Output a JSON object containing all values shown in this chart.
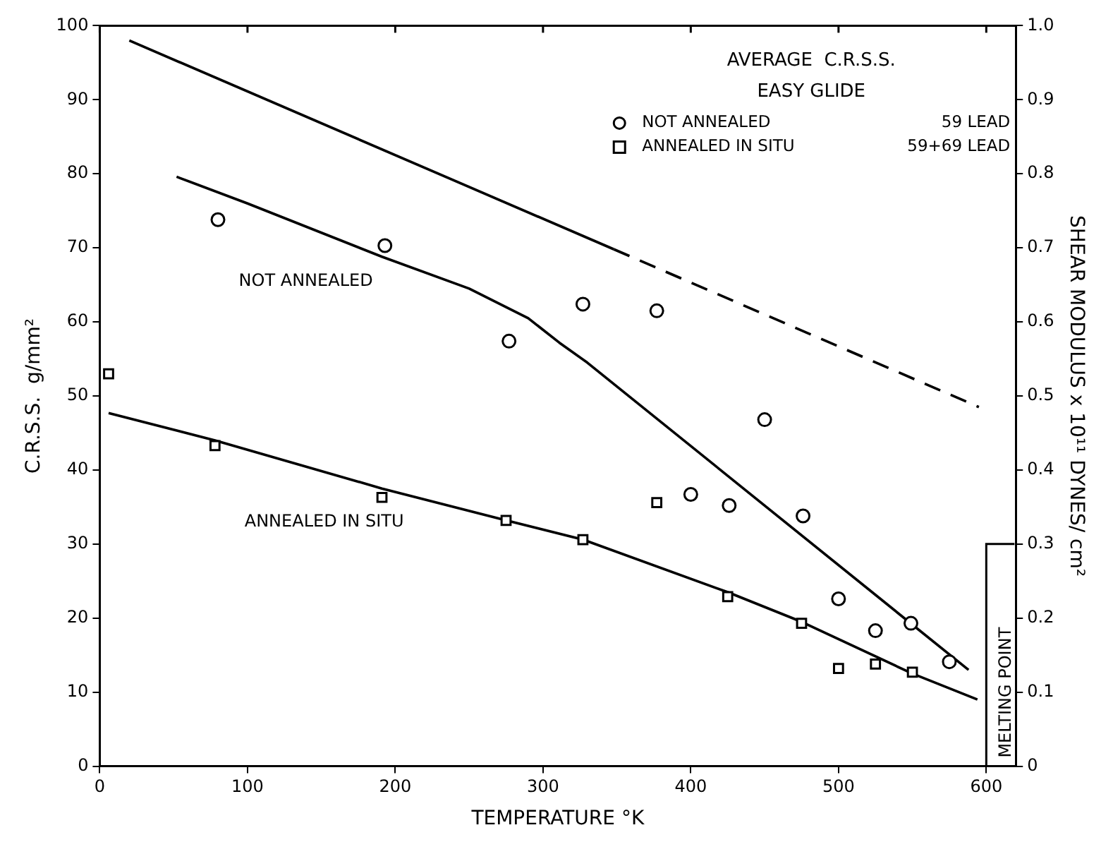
{
  "chart_data": {
    "type": "scatter",
    "xlabel": "TEMPERATURE °K",
    "ylabel": "C.R.S.S.  g/mm²",
    "y2label": "SHEAR MODULUS x 10¹¹ DYNES/ cm²",
    "legend_title": [
      "AVERAGE  C.R.S.S.",
      "EASY GLIDE"
    ],
    "xlim": [
      0,
      620
    ],
    "xticks": [
      0,
      100,
      200,
      300,
      400,
      500,
      600
    ],
    "ylim": [
      0,
      100
    ],
    "yticks": [
      0,
      10,
      20,
      30,
      40,
      50,
      60,
      70,
      80,
      90,
      100
    ],
    "y2lim": [
      0,
      1
    ],
    "y2ticks": [
      0,
      0.1,
      0.2,
      0.3,
      0.4,
      0.5,
      0.6,
      0.7,
      0.8,
      0.9,
      {
        "value": 1,
        "label": "1.0"
      }
    ],
    "grid": false,
    "legend": "top right",
    "series": [
      {
        "name": "NOT ANNEALED",
        "marker": "circle",
        "color": "#000000",
        "x": [
          80,
          193,
          277,
          327,
          377,
          400,
          426,
          450,
          476,
          500,
          525,
          549,
          575
        ],
        "values": [
          73.8,
          70.3,
          57.4,
          62.4,
          61.5,
          36.7,
          35.2,
          46.8,
          33.8,
          22.6,
          18.3,
          19.3,
          14.1
        ]
      },
      {
        "name": "ANNEALED IN SITU",
        "marker": "square",
        "color": "#000000",
        "x": [
          6,
          78,
          191,
          275,
          327,
          377,
          425,
          475,
          500,
          525,
          550
        ],
        "values": [
          53,
          43.3,
          36.3,
          33.2,
          30.6,
          35.6,
          22.9,
          19.3,
          13.2,
          13.8,
          12.7
        ]
      },
      {
        "type": "line",
        "marker": "none",
        "line_style": "solid",
        "color": "#000000",
        "x": [
          52,
          100,
          191,
          250,
          290,
          311,
          330,
          588
        ],
        "values": [
          79.6,
          76,
          68.8,
          64.5,
          60.5,
          57.2,
          54.5,
          13
        ]
      },
      {
        "type": "line",
        "marker": "none",
        "line_style": "solid",
        "color": "#000000",
        "x": [
          6,
          78,
          191,
          275,
          327,
          425,
          475,
          550,
          594
        ],
        "values": [
          47.7,
          44,
          37.5,
          33.2,
          30.6,
          23.5,
          19.5,
          12.5,
          9
        ]
      },
      {
        "type": "line",
        "axis": "y2",
        "marker": "none",
        "line_style": "solid",
        "color": "#000000",
        "x": [
          20,
          348
        ],
        "values": [
          0.98,
          0.698
        ]
      },
      {
        "type": "line",
        "axis": "y2",
        "marker": "none",
        "line_style": "dashed",
        "color": "#000000",
        "x": [
          348,
          595
        ],
        "values": [
          0.698,
          0.485
        ]
      }
    ],
    "ref_lines": [
      {
        "axis": "x",
        "value": 600,
        "label": "MELTING POINT"
      }
    ],
    "annotations": [
      "NOT ANNEALED",
      "ANNEALED IN SITU",
      "59 LEAD",
      "59+69 LEAD"
    ]
  }
}
